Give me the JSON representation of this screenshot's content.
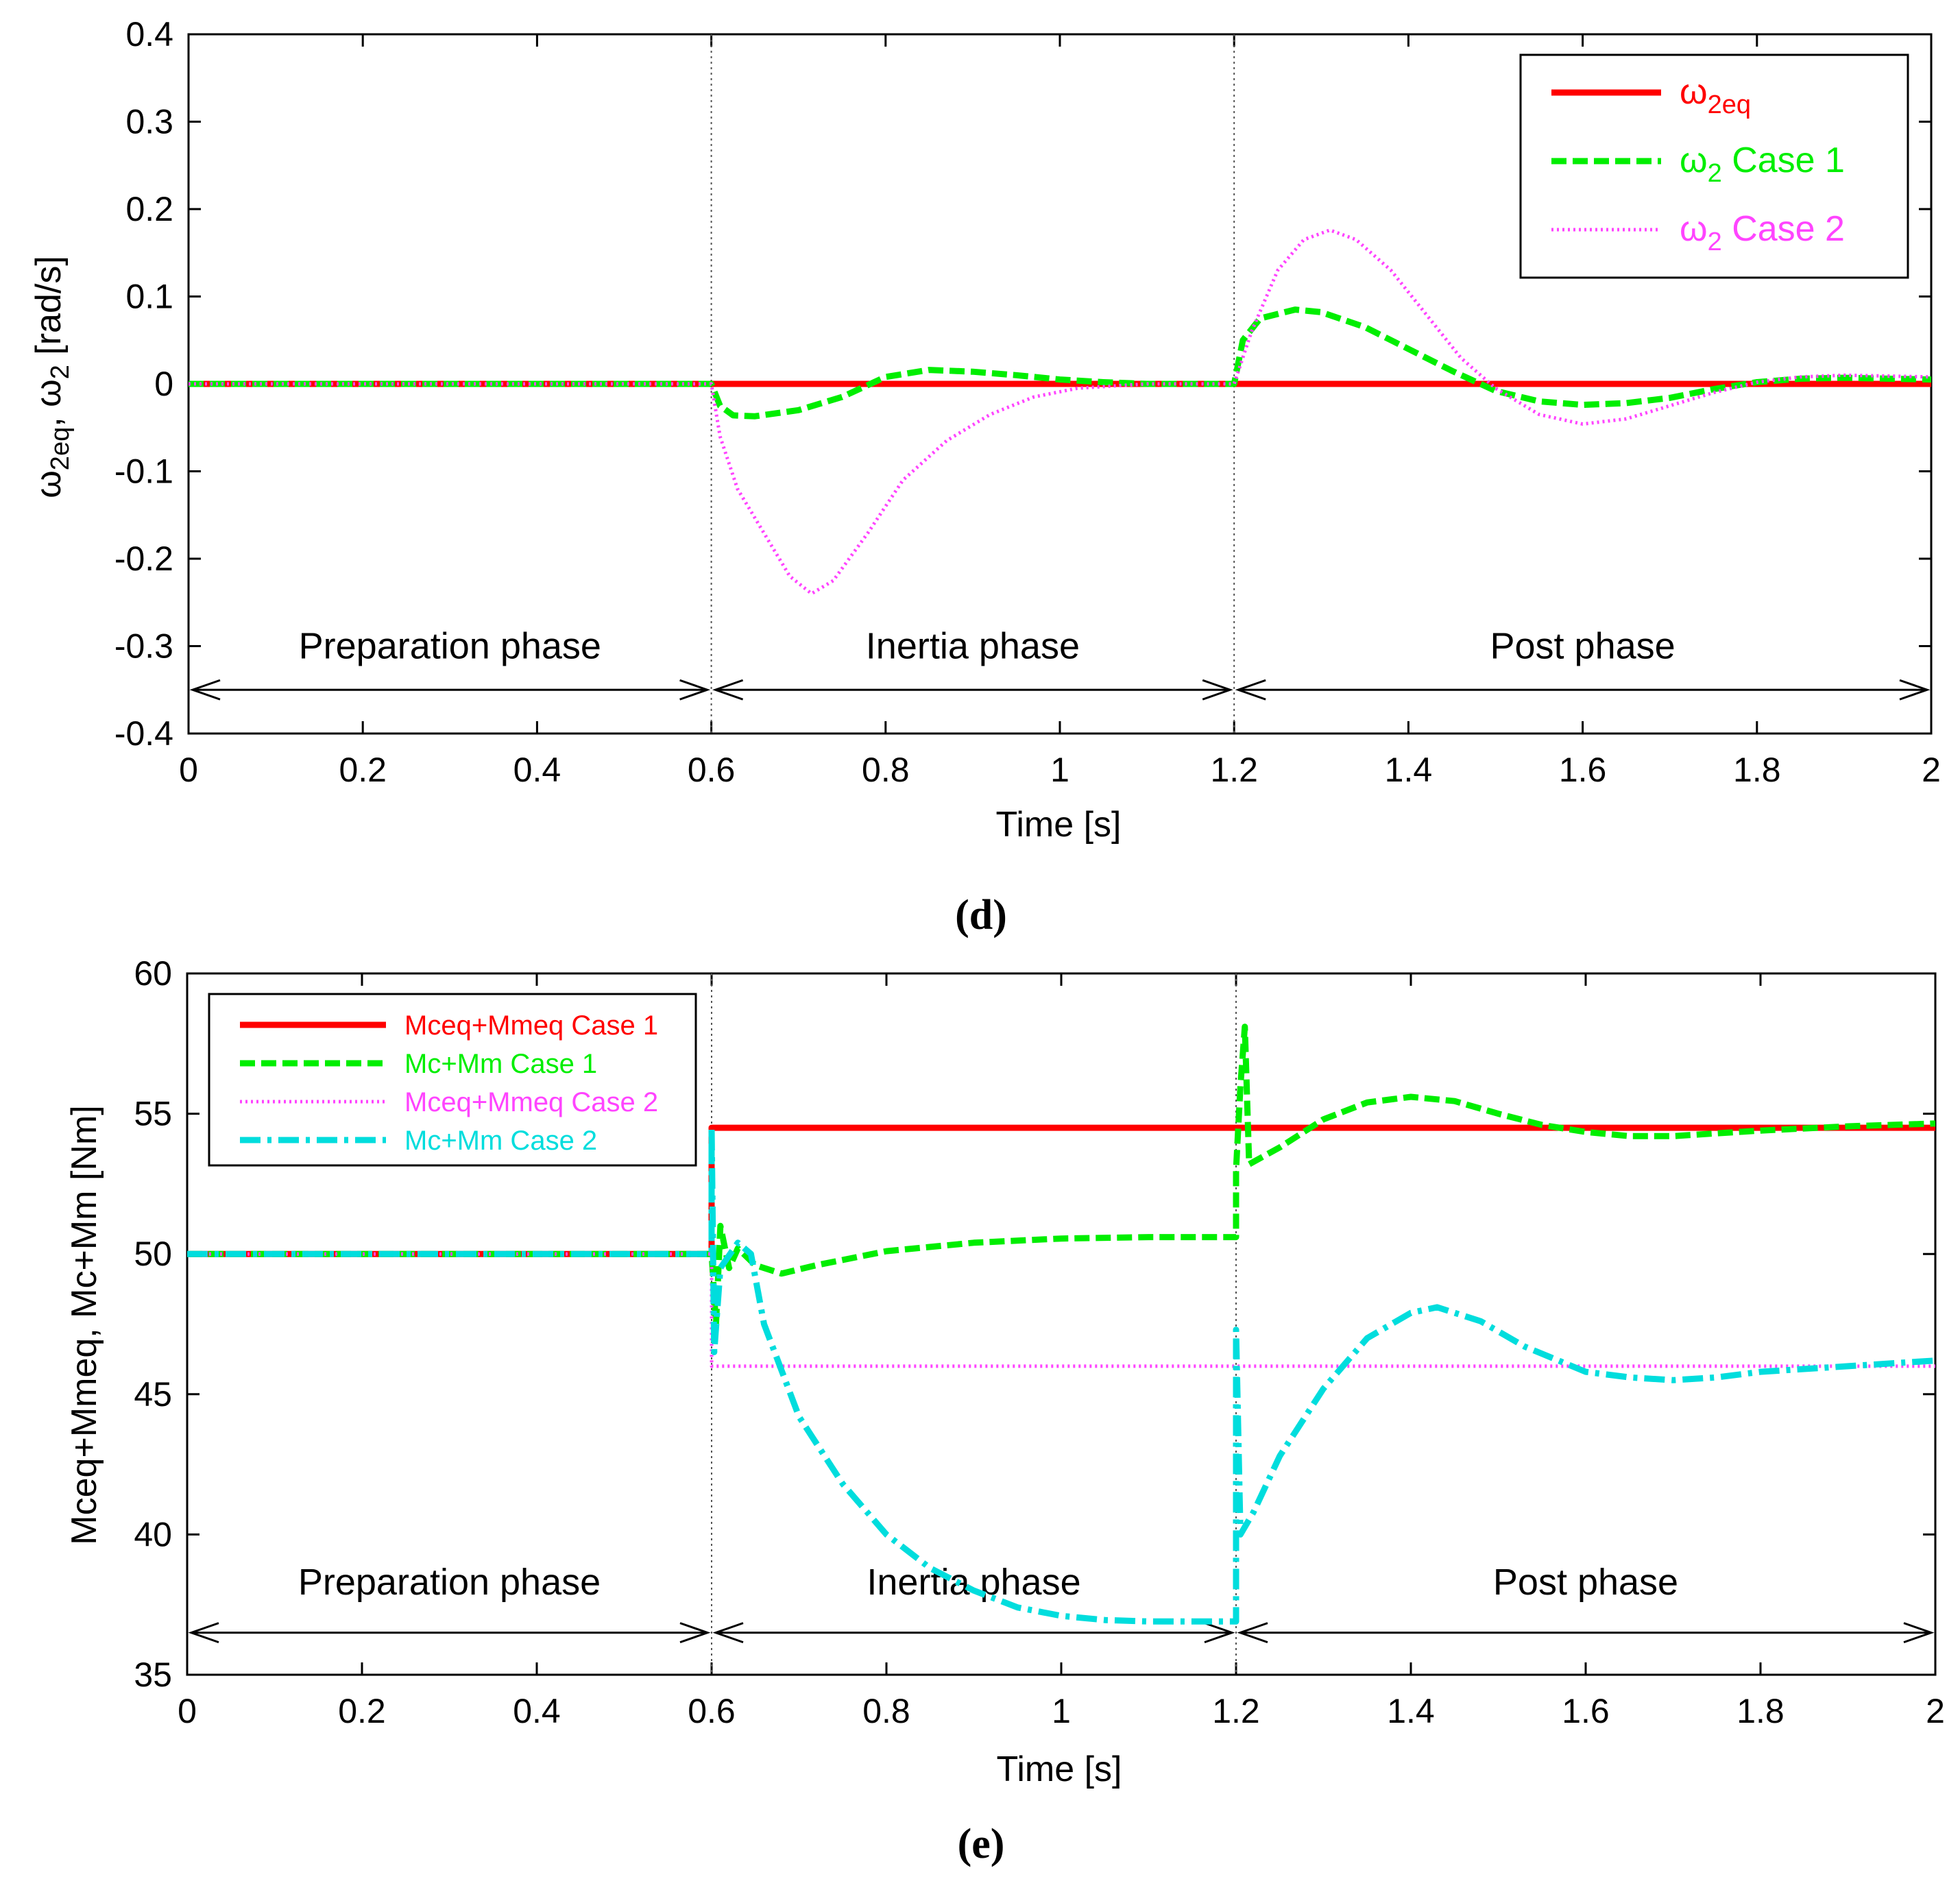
{
  "chart_data": [
    {
      "id": "d",
      "type": "line",
      "panel_label": "d",
      "caption_open": "(",
      "caption_close": ")",
      "xlabel": "Time [s]",
      "ylabel": {
        "w": "ω",
        "s1": "2eq",
        "mid": ", ω",
        "s2": "2",
        "tail": " [rad/s]"
      },
      "xlim": [
        0,
        2
      ],
      "ylim": [
        -0.4,
        0.4
      ],
      "xticks": [
        0,
        0.2,
        0.4,
        0.6,
        0.8,
        1,
        1.2,
        1.4,
        1.6,
        1.8,
        2
      ],
      "yticks": [
        -0.4,
        -0.3,
        -0.2,
        -0.1,
        0,
        0.1,
        0.2,
        0.3,
        0.4
      ],
      "phase_lines": [
        0.6,
        1.2
      ],
      "phase_arrow_y": -0.35,
      "phases": [
        {
          "label": "Preparation phase",
          "x": 0.3,
          "y": -0.3
        },
        {
          "label": "Inertia phase",
          "x": 0.9,
          "y": -0.3
        },
        {
          "label": "Post phase",
          "x": 1.6,
          "y": -0.3
        }
      ],
      "legend": {
        "placement": "top-right"
      },
      "series": [
        {
          "name": "ω2eq",
          "base": "ω",
          "sub": "2eq",
          "suffix": "",
          "color": "#ff0000",
          "style": "solid",
          "points": [
            [
              0,
              0
            ],
            [
              2,
              0
            ]
          ]
        },
        {
          "name": "ω2 Case 1",
          "base": "ω",
          "sub": "2",
          "suffix": " Case 1",
          "color": "#00ee00",
          "style": "dashed",
          "points": [
            [
              0,
              0
            ],
            [
              0.6,
              0
            ],
            [
              0.61,
              -0.025
            ],
            [
              0.625,
              -0.036
            ],
            [
              0.65,
              -0.037
            ],
            [
              0.7,
              -0.03
            ],
            [
              0.75,
              -0.015
            ],
            [
              0.8,
              0.008
            ],
            [
              0.85,
              0.016
            ],
            [
              0.9,
              0.014
            ],
            [
              0.95,
              0.01
            ],
            [
              1.0,
              0.005
            ],
            [
              1.05,
              0.002
            ],
            [
              1.1,
              0.0
            ],
            [
              1.2,
              0.0
            ],
            [
              1.21,
              0.05
            ],
            [
              1.23,
              0.075
            ],
            [
              1.27,
              0.085
            ],
            [
              1.3,
              0.082
            ],
            [
              1.35,
              0.065
            ],
            [
              1.4,
              0.04
            ],
            [
              1.45,
              0.015
            ],
            [
              1.5,
              -0.008
            ],
            [
              1.55,
              -0.02
            ],
            [
              1.6,
              -0.024
            ],
            [
              1.65,
              -0.022
            ],
            [
              1.7,
              -0.016
            ],
            [
              1.75,
              -0.006
            ],
            [
              1.8,
              0.002
            ],
            [
              1.85,
              0.006
            ],
            [
              1.9,
              0.007
            ],
            [
              1.95,
              0.006
            ],
            [
              2.0,
              0.005
            ]
          ]
        },
        {
          "name": "ω2 Case 2",
          "base": "ω",
          "sub": "2",
          "suffix": " Case 2",
          "color": "#ff44ff",
          "style": "dotted",
          "points": [
            [
              0,
              0
            ],
            [
              0.6,
              0
            ],
            [
              0.61,
              -0.06
            ],
            [
              0.63,
              -0.12
            ],
            [
              0.66,
              -0.17
            ],
            [
              0.69,
              -0.22
            ],
            [
              0.715,
              -0.24
            ],
            [
              0.74,
              -0.225
            ],
            [
              0.78,
              -0.17
            ],
            [
              0.82,
              -0.11
            ],
            [
              0.87,
              -0.065
            ],
            [
              0.92,
              -0.035
            ],
            [
              0.97,
              -0.015
            ],
            [
              1.02,
              -0.005
            ],
            [
              1.1,
              0.0
            ],
            [
              1.2,
              0.0
            ],
            [
              1.22,
              0.06
            ],
            [
              1.25,
              0.13
            ],
            [
              1.28,
              0.165
            ],
            [
              1.31,
              0.176
            ],
            [
              1.34,
              0.165
            ],
            [
              1.38,
              0.13
            ],
            [
              1.42,
              0.08
            ],
            [
              1.46,
              0.03
            ],
            [
              1.5,
              -0.005
            ],
            [
              1.55,
              -0.035
            ],
            [
              1.6,
              -0.046
            ],
            [
              1.65,
              -0.04
            ],
            [
              1.7,
              -0.025
            ],
            [
              1.75,
              -0.01
            ],
            [
              1.8,
              0.002
            ],
            [
              1.85,
              0.008
            ],
            [
              1.9,
              0.01
            ],
            [
              1.95,
              0.009
            ],
            [
              2.0,
              0.008
            ]
          ]
        }
      ]
    },
    {
      "id": "e",
      "type": "line",
      "panel_label": "e",
      "caption_open": "(",
      "caption_close": ")",
      "xlabel": "Time [s]",
      "ylabel": {
        "text": "Mceq+Mmeq, Mc+Mm [Nm]"
      },
      "xlim": [
        0,
        2
      ],
      "ylim": [
        35,
        60
      ],
      "xticks": [
        0,
        0.2,
        0.4,
        0.6,
        0.8,
        1,
        1.2,
        1.4,
        1.6,
        1.8,
        2
      ],
      "yticks": [
        35,
        40,
        45,
        50,
        55,
        60
      ],
      "phase_lines": [
        0.6,
        1.2
      ],
      "phase_arrow_y": 36.5,
      "phases": [
        {
          "label": "Preparation phase",
          "x": 0.3,
          "y": 38.3
        },
        {
          "label": "Inertia phase",
          "x": 0.9,
          "y": 38.3
        },
        {
          "label": "Post phase",
          "x": 1.6,
          "y": 38.3
        }
      ],
      "legend": {
        "placement": "top-left"
      },
      "series": [
        {
          "name": "Mceq+Mmeq Case 1",
          "color": "#ff0000",
          "style": "solid",
          "points": [
            [
              0,
              50
            ],
            [
              0.6,
              50
            ],
            [
              0.6,
              54.5
            ],
            [
              2.0,
              54.5
            ]
          ]
        },
        {
          "name": "Mc+Mm Case 1",
          "color": "#00ee00",
          "style": "dashed",
          "points": [
            [
              0,
              50
            ],
            [
              0.6,
              50
            ],
            [
              0.605,
              47.5
            ],
            [
              0.61,
              51
            ],
            [
              0.62,
              49.5
            ],
            [
              0.63,
              50.2
            ],
            [
              0.65,
              49.6
            ],
            [
              0.68,
              49.3
            ],
            [
              0.72,
              49.6
            ],
            [
              0.8,
              50.1
            ],
            [
              0.9,
              50.4
            ],
            [
              1.0,
              50.55
            ],
            [
              1.1,
              50.6
            ],
            [
              1.2,
              50.6
            ],
            [
              1.2,
              53.0
            ],
            [
              1.205,
              56
            ],
            [
              1.21,
              58.1
            ],
            [
              1.215,
              53.2
            ],
            [
              1.25,
              53.8
            ],
            [
              1.3,
              54.8
            ],
            [
              1.35,
              55.4
            ],
            [
              1.4,
              55.6
            ],
            [
              1.45,
              55.45
            ],
            [
              1.5,
              55.0
            ],
            [
              1.55,
              54.6
            ],
            [
              1.6,
              54.35
            ],
            [
              1.65,
              54.2
            ],
            [
              1.7,
              54.2
            ],
            [
              1.75,
              54.3
            ],
            [
              1.8,
              54.4
            ],
            [
              1.9,
              54.55
            ],
            [
              2.0,
              54.65
            ]
          ]
        },
        {
          "name": "Mceq+Mmeq Case 2",
          "color": "#ff44ff",
          "style": "dotted",
          "points": [
            [
              0,
              50
            ],
            [
              0.6,
              50
            ],
            [
              0.6,
              46.0
            ],
            [
              2.0,
              46.0
            ]
          ]
        },
        {
          "name": "Mc+Mm Case 2",
          "color": "#00dddd",
          "style": "dashdot",
          "points": [
            [
              0,
              50
            ],
            [
              0.6,
              50
            ],
            [
              0.6,
              54.5
            ],
            [
              0.603,
              46.5
            ],
            [
              0.61,
              49.5
            ],
            [
              0.63,
              50.4
            ],
            [
              0.645,
              50.0
            ],
            [
              0.66,
              47.5
            ],
            [
              0.7,
              44.2
            ],
            [
              0.75,
              41.8
            ],
            [
              0.8,
              40.0
            ],
            [
              0.85,
              38.8
            ],
            [
              0.9,
              38.0
            ],
            [
              0.95,
              37.4
            ],
            [
              1.0,
              37.1
            ],
            [
              1.05,
              36.95
            ],
            [
              1.1,
              36.9
            ],
            [
              1.2,
              36.9
            ],
            [
              1.2,
              47.3
            ],
            [
              1.205,
              40.0
            ],
            [
              1.22,
              40.8
            ],
            [
              1.25,
              42.8
            ],
            [
              1.3,
              45.2
            ],
            [
              1.35,
              47.0
            ],
            [
              1.4,
              47.9
            ],
            [
              1.43,
              48.1
            ],
            [
              1.48,
              47.6
            ],
            [
              1.53,
              46.7
            ],
            [
              1.6,
              45.8
            ],
            [
              1.65,
              45.6
            ],
            [
              1.7,
              45.5
            ],
            [
              1.75,
              45.6
            ],
            [
              1.8,
              45.8
            ],
            [
              1.9,
              46.0
            ],
            [
              2.0,
              46.2
            ]
          ]
        }
      ]
    }
  ]
}
